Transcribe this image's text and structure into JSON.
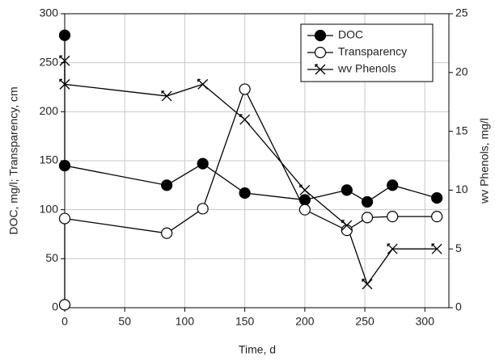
{
  "chart_data": {
    "type": "line",
    "x_label": "Time, d",
    "y_label": "DOC, mg/l; Transparency, cm",
    "y2_label": "wv Phenols, mg/l",
    "xlim": [
      0,
      320
    ],
    "xticks": [
      0,
      50,
      100,
      150,
      200,
      250,
      300
    ],
    "ylim": [
      0,
      300
    ],
    "yticks": [
      0,
      50,
      100,
      150,
      200,
      250,
      300
    ],
    "y2lim": [
      0,
      25
    ],
    "y2ticks": [
      0,
      5,
      10,
      15,
      20,
      25
    ],
    "grid": true,
    "legend": "upper right",
    "series": [
      {
        "name": "DOC",
        "color": "#000000",
        "marker": "filled-circle",
        "x": [
          0,
          0,
          85,
          115,
          150,
          200,
          235,
          252,
          273,
          310
        ],
        "values": [
          278,
          145,
          125,
          147,
          117,
          110,
          120,
          108,
          125,
          112
        ]
      },
      {
        "name": "Transparency",
        "color": "#000000",
        "marker": "open-circle",
        "x": [
          0,
          0,
          85,
          115,
          150,
          200,
          235,
          252,
          273,
          310
        ],
        "values": [
          3,
          91,
          76,
          101,
          223,
          100,
          79,
          92,
          93,
          93
        ]
      },
      {
        "name": "wv Phenols",
        "color": "#000000",
        "marker": "cross",
        "axis": "y2",
        "x": [
          0,
          0,
          85,
          115,
          150,
          200,
          235,
          252,
          273,
          310
        ],
        "values": [
          21,
          19,
          18,
          19,
          16,
          10,
          7,
          2,
          5,
          5
        ]
      }
    ]
  }
}
